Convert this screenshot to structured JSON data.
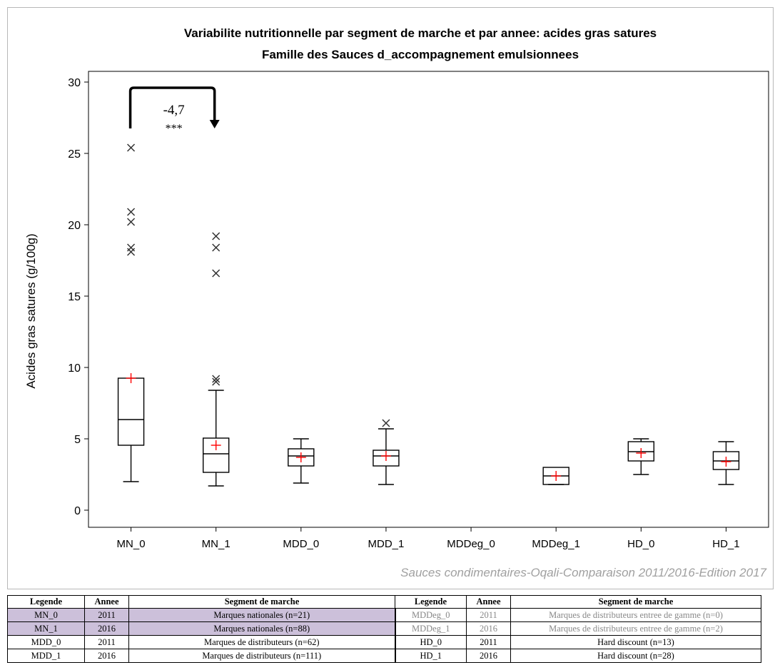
{
  "chart_data": {
    "type": "box",
    "title_line1": "Variabilite nutritionnelle par segment de marche et par annee: acides gras satures",
    "title_line2": "Famille des Sauces d_accompagnement emulsionnees",
    "ylabel": "Acides gras satures (g/100g)",
    "xlabel": "",
    "ylim": [
      0,
      30
    ],
    "yticks": [
      0,
      5,
      10,
      15,
      20,
      25,
      30
    ],
    "grid": false,
    "legend": "none",
    "footer": "Sauces condimentaires-Oqali-Comparaison 2011/2016-Edition 2017",
    "categories": [
      "MN_0",
      "MN_1",
      "MDD_0",
      "MDD_1",
      "MDDeg_0",
      "MDDeg_1",
      "HD_0",
      "HD_1"
    ],
    "boxes": [
      {
        "category": "MN_0",
        "min": 2.0,
        "q1": 4.55,
        "median": 6.35,
        "q3": 9.25,
        "max": 9.25,
        "mean": 9.25,
        "outliers": [
          18.1,
          18.4,
          20.2,
          20.9,
          25.4
        ]
      },
      {
        "category": "MN_1",
        "min": 1.7,
        "q1": 2.65,
        "median": 3.95,
        "q3": 5.05,
        "max": 8.4,
        "mean": 4.55,
        "outliers": [
          9.0,
          9.2,
          16.6,
          18.4,
          19.2
        ]
      },
      {
        "category": "MDD_0",
        "min": 1.9,
        "q1": 3.1,
        "median": 3.8,
        "q3": 4.3,
        "max": 5.0,
        "mean": 3.7,
        "outliers": []
      },
      {
        "category": "MDD_1",
        "min": 1.8,
        "q1": 3.1,
        "median": 3.8,
        "q3": 4.2,
        "max": 5.7,
        "mean": 3.8,
        "outliers": [
          6.1
        ]
      },
      {
        "category": "MDDeg_0",
        "min": null,
        "q1": null,
        "median": null,
        "q3": null,
        "max": null,
        "mean": null,
        "outliers": []
      },
      {
        "category": "MDDeg_1",
        "min": 1.8,
        "q1": 1.8,
        "median": 2.4,
        "q3": 3.0,
        "max": 3.0,
        "mean": 2.4,
        "outliers": []
      },
      {
        "category": "HD_0",
        "min": 2.5,
        "q1": 3.45,
        "median": 4.1,
        "q3": 4.8,
        "max": 5.0,
        "mean": 4.0,
        "outliers": []
      },
      {
        "category": "HD_1",
        "min": 1.8,
        "q1": 2.85,
        "median": 3.45,
        "q3": 4.1,
        "max": 4.8,
        "mean": 3.4,
        "outliers": []
      }
    ],
    "annotation": {
      "from": "MN_0",
      "to": "MN_1",
      "delta": "-4,7",
      "significance": "***",
      "y": 29.5
    }
  },
  "colors": {
    "box": "#000000",
    "outlier": "#333333",
    "mean_marker": "#ff0000",
    "footer_text": "#a0a0a0",
    "highlight": "#ccc0da",
    "gray_text": "#888888"
  },
  "table": {
    "headers": [
      "Legende",
      "Annee",
      "Segment de marche",
      "Legende",
      "Annee",
      "Segment de marche"
    ],
    "rows": [
      {
        "left": {
          "legend": "MN_0",
          "year": "2011",
          "segment": "Marques nationales (n=21)"
        },
        "right": {
          "legend": "MDDeg_0",
          "year": "2011",
          "segment": "Marques de distributeurs entree de gamme (n=0)"
        }
      },
      {
        "left": {
          "legend": "MN_1",
          "year": "2016",
          "segment": "Marques nationales (n=88)"
        },
        "right": {
          "legend": "MDDeg_1",
          "year": "2016",
          "segment": "Marques de distributeurs entree de gamme (n=2)"
        }
      },
      {
        "left": {
          "legend": "MDD_0",
          "year": "2011",
          "segment": "Marques de distributeurs (n=62)"
        },
        "right": {
          "legend": "HD_0",
          "year": "2011",
          "segment": "Hard discount (n=13)"
        }
      },
      {
        "left": {
          "legend": "MDD_1",
          "year": "2016",
          "segment": "Marques de distributeurs (n=111)"
        },
        "right": {
          "legend": "HD_1",
          "year": "2016",
          "segment": "Hard discount (n=28)"
        }
      }
    ]
  }
}
